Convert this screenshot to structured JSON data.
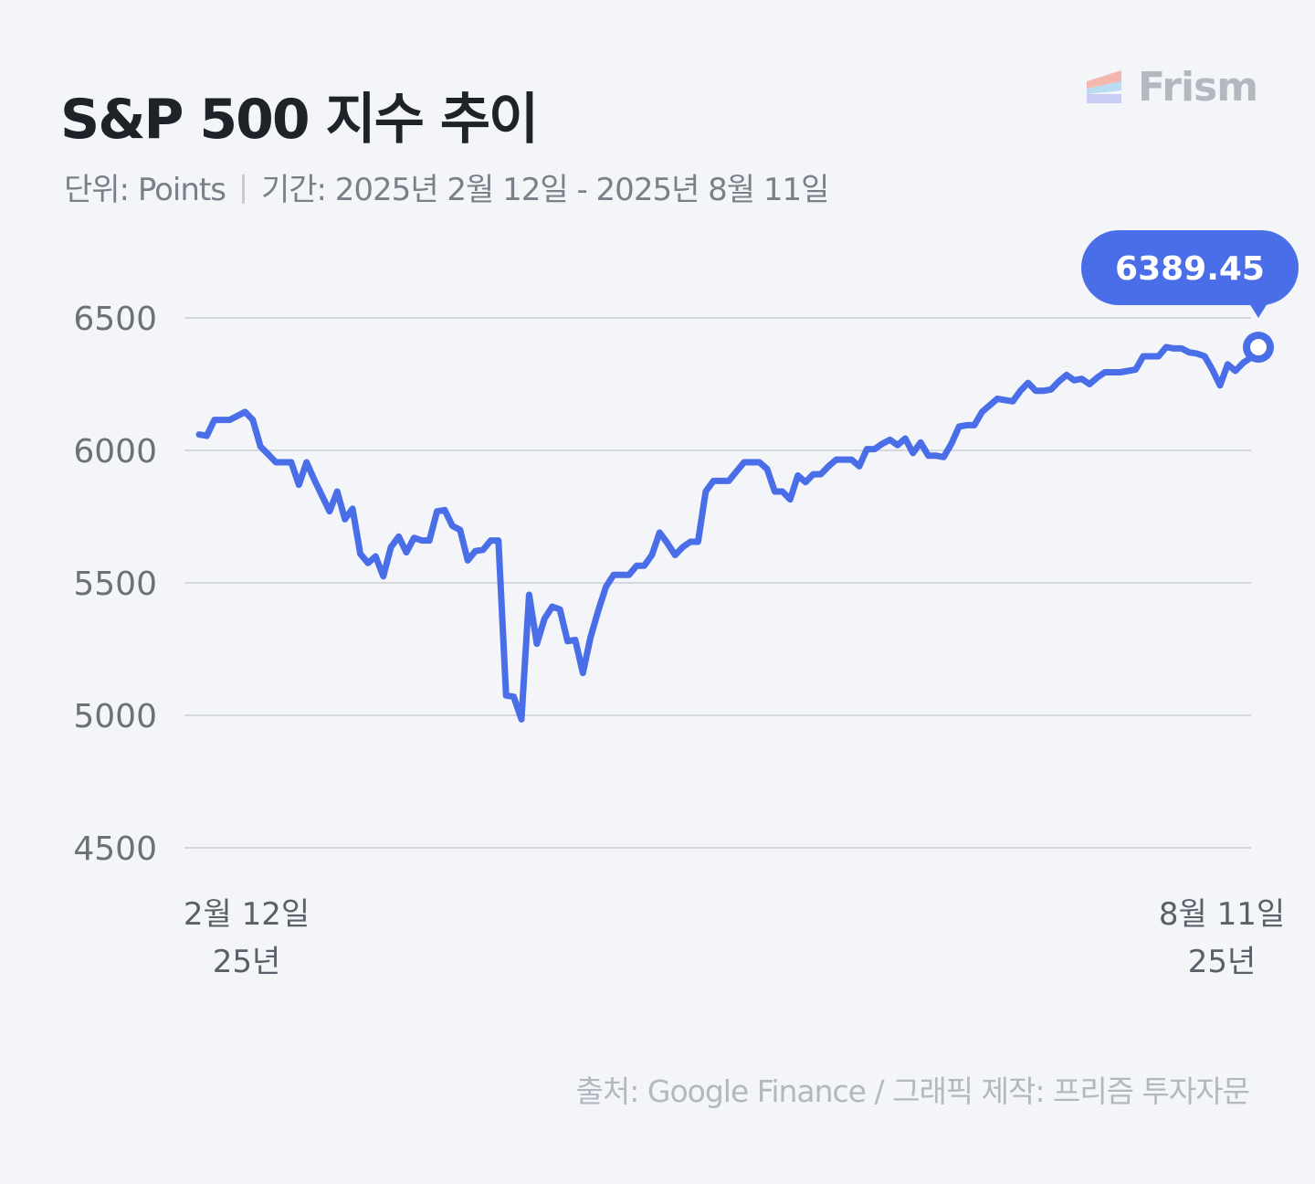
{
  "header": {
    "title": "S&P 500 지수 추이",
    "unit_label": "단위: Points",
    "period_label": "기간: 2025년 2월 12일 - 2025년 8월 11일"
  },
  "brand": {
    "name": "Frism",
    "icon": "frism-logo-icon"
  },
  "footer": {
    "source": "출처: Google Finance / 그래픽 제작: 프리즘 투자자문"
  },
  "colors": {
    "line": "#4a6ee8",
    "grid": "#d4d7dd",
    "background": "#f3f5f8"
  },
  "chart_data": {
    "type": "line",
    "ylim": [
      4500,
      6500
    ],
    "yticks": [
      6500,
      6000,
      5500,
      5000,
      4500
    ],
    "x_labels": [
      {
        "line1": "2월 12일",
        "line2": "25년"
      },
      {
        "line1": "8월 11일",
        "line2": "25년"
      }
    ],
    "last_value_label": "6389.45",
    "grid": true,
    "series": [
      {
        "values": [
          6060,
          6055,
          6115,
          6115,
          6115,
          6130,
          6145,
          6115,
          6015,
          5985,
          5955,
          5955,
          5955,
          5870,
          5955,
          5890,
          5830,
          5770,
          5845,
          5740,
          5780,
          5610,
          5575,
          5600,
          5525,
          5635,
          5675,
          5615,
          5670,
          5660,
          5660,
          5770,
          5775,
          5715,
          5700,
          5585,
          5620,
          5625,
          5660,
          5660,
          5075,
          5070,
          4985,
          5455,
          5270,
          5365,
          5410,
          5400,
          5280,
          5285,
          5160,
          5295,
          5395,
          5485,
          5530,
          5530,
          5530,
          5565,
          5565,
          5605,
          5690,
          5650,
          5605,
          5635,
          5655,
          5655,
          5845,
          5885,
          5885,
          5885,
          5920,
          5955,
          5955,
          5955,
          5930,
          5845,
          5845,
          5815,
          5905,
          5880,
          5910,
          5910,
          5940,
          5965,
          5965,
          5965,
          5940,
          6005,
          6005,
          6025,
          6040,
          6020,
          6045,
          5990,
          6030,
          5980,
          5980,
          5975,
          6025,
          6090,
          6095,
          6095,
          6145,
          6170,
          6195,
          6190,
          6185,
          6225,
          6255,
          6225,
          6225,
          6230,
          6260,
          6285,
          6265,
          6270,
          6250,
          6275,
          6295,
          6295,
          6295,
          6300,
          6305,
          6355,
          6355,
          6355,
          6390,
          6385,
          6385,
          6370,
          6365,
          6355,
          6305,
          6245,
          6325,
          6300,
          6330,
          6350,
          6389.45
        ]
      }
    ]
  }
}
